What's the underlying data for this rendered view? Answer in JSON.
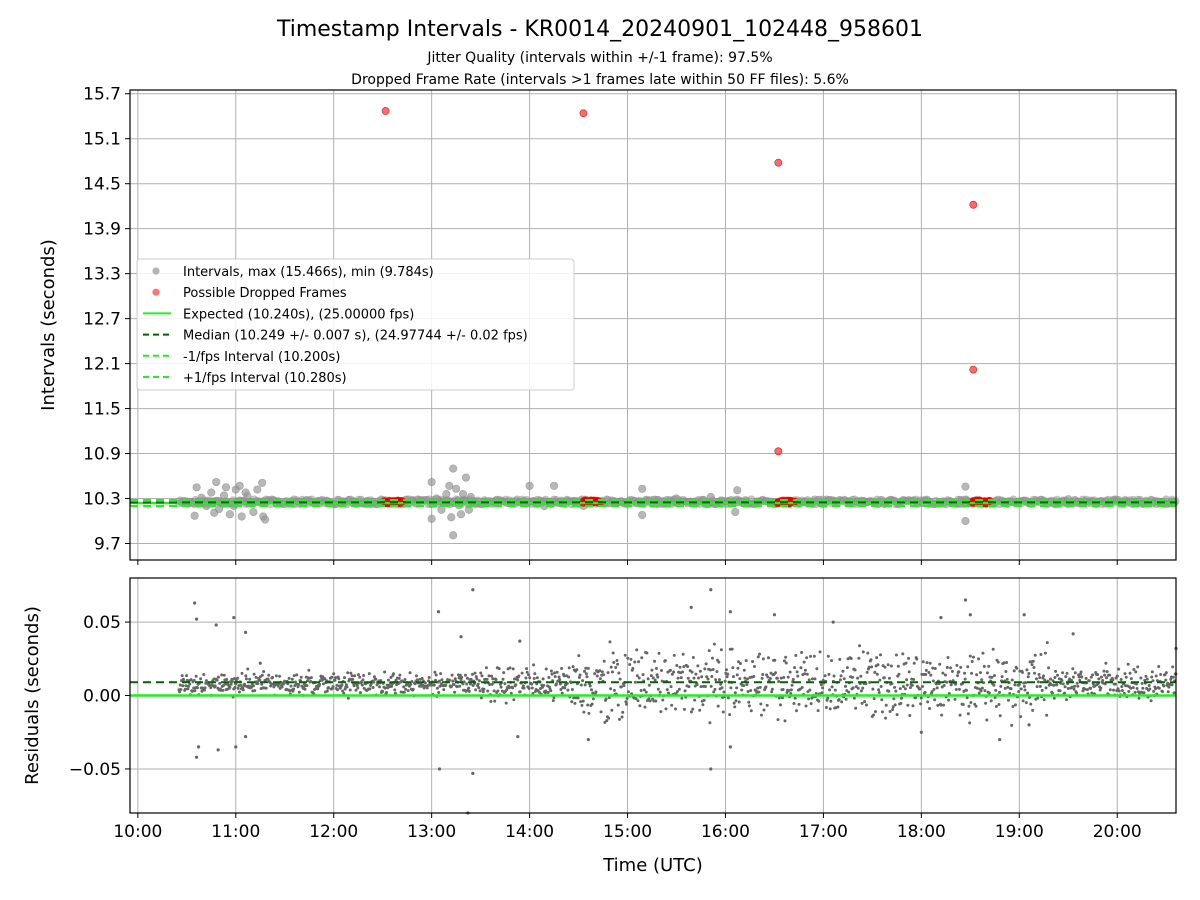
{
  "colors": {
    "interval": "#999999",
    "dropped": "#ff4444",
    "dropped_band": "#ee0000",
    "expected": "#22ee22",
    "median": "#006400",
    "fps_bound": "#22ee22",
    "residual": "#666666",
    "grid": "#b0b0b0"
  },
  "chart_data": [
    {
      "type": "scatter",
      "title": "Timestamp Intervals - KR0014_20240901_102448_958601",
      "subtitle_lines": [
        "Jitter Quality (intervals within +/-1 frame): 97.5%",
        "Dropped Frame Rate (intervals >1 frames late within 50 FF files): 5.6%"
      ],
      "xlabel": "",
      "ylabel": "Intervals (seconds)",
      "xlim": [
        9.92,
        20.6
      ],
      "ylim": [
        9.48,
        15.75
      ],
      "x_ticks": [
        10,
        11,
        12,
        13,
        14,
        15,
        16,
        17,
        18,
        19,
        20
      ],
      "y_ticks": [
        9.7,
        10.3,
        10.9,
        11.5,
        12.1,
        12.7,
        13.3,
        13.9,
        14.5,
        15.1,
        15.7
      ],
      "y_tick_labels": [
        "9.7",
        "10.3",
        "10.9",
        "11.5",
        "12.1",
        "12.7",
        "13.3",
        "13.9",
        "14.5",
        "15.1",
        "15.7"
      ],
      "grid": true,
      "legend_position": "center-left",
      "legend": [
        {
          "label": "Intervals, max (15.466s), min (9.784s)",
          "kind": "marker",
          "color": "#999999"
        },
        {
          "label": "Possible Dropped Frames",
          "kind": "marker",
          "color": "#ff4444"
        },
        {
          "label": "Expected (10.240s), (25.00000 fps)",
          "kind": "solid",
          "color": "#22ee22"
        },
        {
          "label": "Median (10.249 +/- 0.007 s), (24.97744 +/- 0.02 fps)",
          "kind": "dashed",
          "color": "#006400"
        },
        {
          "label": "-1/fps Interval (10.200s)",
          "kind": "dashed",
          "color": "#22ee22"
        },
        {
          "label": "+1/fps Interval (10.280s)",
          "kind": "dashed",
          "color": "#22ee22"
        }
      ],
      "lines": {
        "expected": 10.24,
        "median": 10.249,
        "minus_fps": 10.2,
        "plus_fps": 10.28
      },
      "dropped_frames": [
        {
          "x": 12.53,
          "y": 15.47
        },
        {
          "x": 14.55,
          "y": 15.44
        },
        {
          "x": 16.54,
          "y": 14.78
        },
        {
          "x": 18.53,
          "y": 14.22
        },
        {
          "x": 18.53,
          "y": 12.02
        },
        {
          "x": 16.54,
          "y": 10.93
        }
      ],
      "dropped_bands": [
        [
          12.52,
          12.7
        ],
        [
          14.55,
          14.72
        ],
        [
          16.53,
          16.71
        ],
        [
          18.52,
          18.7
        ]
      ],
      "interval_outliers": [
        {
          "x": 10.58,
          "y": 10.07
        },
        {
          "x": 10.6,
          "y": 10.45
        },
        {
          "x": 10.62,
          "y": 10.23
        },
        {
          "x": 10.75,
          "y": 10.38
        },
        {
          "x": 10.78,
          "y": 10.11
        },
        {
          "x": 10.8,
          "y": 10.52
        },
        {
          "x": 10.83,
          "y": 10.16
        },
        {
          "x": 10.88,
          "y": 10.34
        },
        {
          "x": 10.9,
          "y": 10.45
        },
        {
          "x": 10.94,
          "y": 10.09
        },
        {
          "x": 10.98,
          "y": 10.2
        },
        {
          "x": 11.0,
          "y": 10.42
        },
        {
          "x": 11.04,
          "y": 10.47
        },
        {
          "x": 11.06,
          "y": 10.06
        },
        {
          "x": 11.1,
          "y": 10.38
        },
        {
          "x": 11.14,
          "y": 10.25
        },
        {
          "x": 11.18,
          "y": 10.12
        },
        {
          "x": 11.22,
          "y": 10.42
        },
        {
          "x": 11.27,
          "y": 10.51
        },
        {
          "x": 11.28,
          "y": 10.06
        },
        {
          "x": 11.3,
          "y": 10.02
        },
        {
          "x": 10.65,
          "y": 10.31
        },
        {
          "x": 10.7,
          "y": 10.2
        },
        {
          "x": 11.12,
          "y": 10.33
        },
        {
          "x": 13.0,
          "y": 10.52
        },
        {
          "x": 13.0,
          "y": 10.03
        },
        {
          "x": 13.05,
          "y": 10.3
        },
        {
          "x": 13.1,
          "y": 10.15
        },
        {
          "x": 13.15,
          "y": 10.36
        },
        {
          "x": 13.18,
          "y": 10.47
        },
        {
          "x": 13.2,
          "y": 10.05
        },
        {
          "x": 13.22,
          "y": 10.7
        },
        {
          "x": 13.22,
          "y": 9.81
        },
        {
          "x": 13.25,
          "y": 10.43
        },
        {
          "x": 13.28,
          "y": 10.21
        },
        {
          "x": 13.3,
          "y": 10.09
        },
        {
          "x": 13.32,
          "y": 10.36
        },
        {
          "x": 13.35,
          "y": 10.58
        },
        {
          "x": 13.38,
          "y": 10.15
        },
        {
          "x": 13.4,
          "y": 10.32
        },
        {
          "x": 13.12,
          "y": 10.24
        },
        {
          "x": 14.0,
          "y": 10.47
        },
        {
          "x": 14.15,
          "y": 10.2
        },
        {
          "x": 14.25,
          "y": 10.47
        },
        {
          "x": 14.55,
          "y": 10.2
        },
        {
          "x": 15.15,
          "y": 10.43
        },
        {
          "x": 15.15,
          "y": 10.08
        },
        {
          "x": 15.5,
          "y": 10.3
        },
        {
          "x": 15.85,
          "y": 10.32
        },
        {
          "x": 16.12,
          "y": 10.41
        },
        {
          "x": 16.1,
          "y": 10.12
        },
        {
          "x": 18.45,
          "y": 10.46
        },
        {
          "x": 18.45,
          "y": 10.0
        },
        {
          "x": 18.4,
          "y": 10.28
        },
        {
          "x": 19.5,
          "y": 10.29
        }
      ],
      "interval_baseline_range": [
        10.22,
        10.29
      ]
    },
    {
      "type": "scatter",
      "title": "",
      "xlabel": "Time (UTC)",
      "ylabel": "Residuals (seconds)",
      "xlim": [
        9.92,
        20.6
      ],
      "ylim": [
        -0.08,
        0.08
      ],
      "x_ticks": [
        10,
        11,
        12,
        13,
        14,
        15,
        16,
        17,
        18,
        19,
        20
      ],
      "x_tick_labels": [
        "10:00",
        "11:00",
        "12:00",
        "13:00",
        "14:00",
        "15:00",
        "16:00",
        "17:00",
        "18:00",
        "19:00",
        "20:00"
      ],
      "y_ticks": [
        -0.05,
        0.0,
        0.05
      ],
      "y_tick_labels": [
        "−0.05",
        "0.00",
        "0.05"
      ],
      "grid": true,
      "lines": {
        "zero": 0.0,
        "median": 0.009
      },
      "x_start": 10.42,
      "outliers": [
        {
          "x": 10.58,
          "y": 0.063
        },
        {
          "x": 10.6,
          "y": 0.052
        },
        {
          "x": 10.6,
          "y": -0.042
        },
        {
          "x": 10.62,
          "y": -0.035
        },
        {
          "x": 10.8,
          "y": 0.048
        },
        {
          "x": 10.82,
          "y": -0.037
        },
        {
          "x": 10.98,
          "y": 0.053
        },
        {
          "x": 11.0,
          "y": -0.035
        },
        {
          "x": 11.1,
          "y": 0.043
        },
        {
          "x": 11.1,
          "y": -0.028
        },
        {
          "x": 11.25,
          "y": 0.022
        },
        {
          "x": 13.07,
          "y": 0.057
        },
        {
          "x": 13.08,
          "y": -0.05
        },
        {
          "x": 13.42,
          "y": 0.072
        },
        {
          "x": 13.42,
          "y": -0.053
        },
        {
          "x": 13.37,
          "y": -0.08
        },
        {
          "x": 13.3,
          "y": 0.04
        },
        {
          "x": 13.9,
          "y": 0.037
        },
        {
          "x": 13.88,
          "y": -0.028
        },
        {
          "x": 14.6,
          "y": -0.03
        },
        {
          "x": 15.85,
          "y": 0.072
        },
        {
          "x": 15.85,
          "y": -0.05
        },
        {
          "x": 15.65,
          "y": 0.06
        },
        {
          "x": 16.05,
          "y": 0.057
        },
        {
          "x": 16.05,
          "y": -0.035
        },
        {
          "x": 16.5,
          "y": 0.055
        },
        {
          "x": 17.1,
          "y": 0.05
        },
        {
          "x": 18.45,
          "y": 0.065
        },
        {
          "x": 18.5,
          "y": 0.055
        },
        {
          "x": 18.2,
          "y": 0.053
        },
        {
          "x": 18.0,
          "y": -0.025
        },
        {
          "x": 18.8,
          "y": -0.03
        },
        {
          "x": 19.05,
          "y": 0.055
        },
        {
          "x": 19.55,
          "y": 0.042
        },
        {
          "x": 19.1,
          "y": -0.02
        },
        {
          "x": 20.6,
          "y": 0.032
        }
      ]
    }
  ]
}
